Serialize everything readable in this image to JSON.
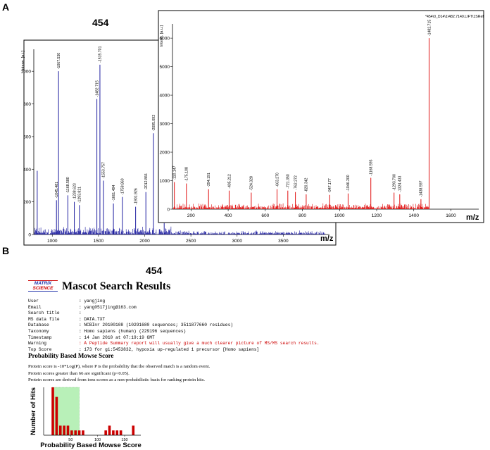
{
  "panel_a": {
    "letter": "A",
    "title": "454",
    "axis_unit": "m/z"
  },
  "panel_b": {
    "letter": "B",
    "title": "454",
    "logo_line1": "MATRIX",
    "logo_line2": "SCIENCE",
    "heading": "Mascot Search Results",
    "info": [
      {
        "label": "User",
        "value": ": yangjing",
        "color": "#000000"
      },
      {
        "label": "Email",
        "value": ": yang0517jing@163.com",
        "color": "#000000"
      },
      {
        "label": "Search title",
        "value": ":",
        "color": "#000000"
      },
      {
        "label": "MS data file",
        "value": ": DATA.TXT",
        "color": "#000000"
      },
      {
        "label": "Database",
        "value": ": NCBInr 20100108 (10291680 sequences; 3511877660 residues)",
        "color": "#000000"
      },
      {
        "label": "Taxonomy",
        "value": ": Homo sapiens (human) (229196 sequences)",
        "color": "#000000"
      },
      {
        "label": "Timestamp",
        "value": ": 14 Jan 2010 at 07:19:19 GMT",
        "color": "#000000"
      },
      {
        "label": "Warning",
        "value": ": A Peptide Summary report will usually give a much clearer picture of MS/MS search results.",
        "color": "#cc0000"
      },
      {
        "label": "Top Score",
        "value": ": 173 for gi:5453832, hypoxia up-regulated 1 precursor [Homo sapiens]",
        "color": "#000000"
      }
    ],
    "mowse_heading": "Probability Based Mowse Score",
    "mowse_lines": [
      "Protein score is -10*Log(P), where P is the probability that the observed match is a random event.",
      "Protein scores greater than 66 are significant (p<0.05).",
      "Protein scores are derived from ions scores as a non-probabilistic basis for ranking protein hits."
    ]
  },
  "chart_data": [
    {
      "type": "line",
      "title": "",
      "xlabel": "m/z",
      "ylabel": "a.i.",
      "xlim": [
        800,
        4000
      ],
      "ylim": [
        0,
        1100
      ],
      "xticks": [
        1000,
        1500,
        2000,
        2500,
        3000,
        3500
      ],
      "yticks": [
        0,
        200,
        400,
        600,
        800,
        1000
      ],
      "color": "#1f1fa0",
      "peaks": [
        {
          "x": 837,
          "y": 390
        },
        {
          "x": 1045.481,
          "y": 210,
          "label": "1045.481"
        },
        {
          "x": 1067.53,
          "y": 1000,
          "label": "1067.530"
        },
        {
          "x": 1168.58,
          "y": 240,
          "label": "1168.580"
        },
        {
          "x": 1238.623,
          "y": 200,
          "label": "1238.623"
        },
        {
          "x": 1293.821,
          "y": 180,
          "label": "1293.821"
        },
        {
          "x": 1482.715,
          "y": 830,
          "label": "1482.715"
        },
        {
          "x": 1515.701,
          "y": 1040,
          "label": "1515.701"
        },
        {
          "x": 1553.757,
          "y": 330,
          "label": "1553.757"
        },
        {
          "x": 1661.494,
          "y": 190,
          "label": "1661.494"
        },
        {
          "x": 1758.86,
          "y": 230,
          "label": "1758.860"
        },
        {
          "x": 1901.926,
          "y": 170,
          "label": "1901.926"
        },
        {
          "x": 2012.866,
          "y": 260,
          "label": "2012.866"
        },
        {
          "x": 2095.092,
          "y": 620,
          "label": "2095.092"
        },
        {
          "x": 2211.05,
          "y": 70,
          "label": "2211.050"
        }
      ]
    },
    {
      "type": "line",
      "title": "",
      "xlabel": "m/z",
      "ylabel": "a.u.",
      "xlim": [
        100,
        1750
      ],
      "ylim": [
        0,
        6300
      ],
      "xticks": [
        200,
        400,
        600,
        800,
        1000,
        1200,
        1400,
        1600
      ],
      "yticks": [
        0,
        1000,
        2000,
        3000,
        4000,
        5000,
        6000
      ],
      "color": "#e01010",
      "header_text": "*454\\0_D14\\1\\482.7140.LIFT\\1SRef",
      "peaks": [
        {
          "x": 110.147,
          "y": 950,
          "label": "110.147"
        },
        {
          "x": 175.108,
          "y": 900,
          "label": "175.108"
        },
        {
          "x": 294.191,
          "y": 700,
          "label": "294.191"
        },
        {
          "x": 405.212,
          "y": 650,
          "label": "405.212"
        },
        {
          "x": 524.328,
          "y": 580,
          "label": "524.328"
        },
        {
          "x": 663.27,
          "y": 700,
          "label": "663.270"
        },
        {
          "x": 721.35,
          "y": 650,
          "label": "721.350"
        },
        {
          "x": 762.272,
          "y": 600,
          "label": "762.272"
        },
        {
          "x": 820.342,
          "y": 520,
          "label": "820.342"
        },
        {
          "x": 947.177,
          "y": 500,
          "label": "947.177"
        },
        {
          "x": 1046.2,
          "y": 550,
          "label": "1046.200"
        },
        {
          "x": 1168.593,
          "y": 1100,
          "label": "1168.593"
        },
        {
          "x": 1293.7,
          "y": 580,
          "label": "1293.700"
        },
        {
          "x": 1324.433,
          "y": 520,
          "label": "1324.433"
        },
        {
          "x": 1438.597,
          "y": 350,
          "label": "1438.597"
        },
        {
          "x": 1482.715,
          "y": 6000,
          "label": "1482.715"
        }
      ]
    },
    {
      "type": "bar",
      "title": "",
      "xlabel": "Probability Based Mowse Score",
      "ylabel": "Number of Hits",
      "xlim": [
        0,
        180
      ],
      "xticks": [
        50,
        100,
        150
      ],
      "significance_threshold": 66,
      "bar_color": "#cc0000",
      "shade_color": "#b8f0b8",
      "bins": [
        {
          "x": 10,
          "y": 0
        },
        {
          "x": 17,
          "y": 47
        },
        {
          "x": 24,
          "y": 8
        },
        {
          "x": 31,
          "y": 2
        },
        {
          "x": 38,
          "y": 2
        },
        {
          "x": 45,
          "y": 2
        },
        {
          "x": 52,
          "y": 1
        },
        {
          "x": 59,
          "y": 1
        },
        {
          "x": 66,
          "y": 1
        },
        {
          "x": 73,
          "y": 1
        },
        {
          "x": 115,
          "y": 1
        },
        {
          "x": 122,
          "y": 2
        },
        {
          "x": 129,
          "y": 1
        },
        {
          "x": 136,
          "y": 1
        },
        {
          "x": 143,
          "y": 1
        },
        {
          "x": 166,
          "y": 2
        }
      ]
    }
  ]
}
